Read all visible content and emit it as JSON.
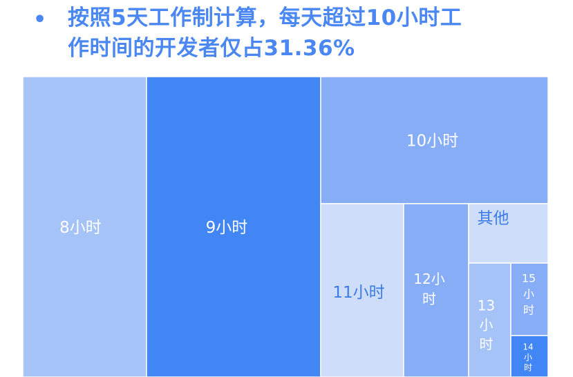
{
  "headline": {
    "bullet": "•",
    "line1": "按照5天工作制计算，每天超过10小时工",
    "line2": "作时间的开发者仅占31.36%"
  },
  "colors": {
    "headline": "#4A87F2",
    "label_light": "#FFFFFF",
    "label_dark": "#3C7BEA"
  },
  "chart_data": {
    "type": "treemap",
    "items": [
      {
        "name": "8小时",
        "label_lines": [
          "8小时"
        ],
        "color": "#A5C3F6",
        "label_color": "#FFFFFF"
      },
      {
        "name": "9小时",
        "label_lines": [
          "9小时"
        ],
        "color": "#4285F4",
        "label_color": "#FFFFFF"
      },
      {
        "name": "10小时",
        "label_lines": [
          "10小时"
        ],
        "color": "#86ADF5",
        "label_color": "#FFFFFF"
      },
      {
        "name": "11小时",
        "label_lines": [
          "11小时"
        ],
        "color": "#CEDDFA",
        "label_color": "#3C7BEA"
      },
      {
        "name": "12小时",
        "label_lines": [
          "12小",
          "时"
        ],
        "color": "#86ADF5",
        "label_color": "#FFFFFF"
      },
      {
        "name": "其他",
        "label_lines": [
          "其他"
        ],
        "color": "#CEDDFA",
        "label_color": "#3C7BEA"
      },
      {
        "name": "13小时",
        "label_lines": [
          "13",
          "小",
          "时"
        ],
        "color": "#A5C3F6",
        "label_color": "#FFFFFF"
      },
      {
        "name": "15小时",
        "label_lines": [
          "15",
          "小",
          "时"
        ],
        "color": "#86ADF5",
        "label_color": "#FFFFFF"
      },
      {
        "name": "14小时",
        "label_lines": [
          "14",
          "小",
          "时"
        ],
        "color": "#4285F4",
        "label_color": "#FFFFFF"
      }
    ]
  }
}
